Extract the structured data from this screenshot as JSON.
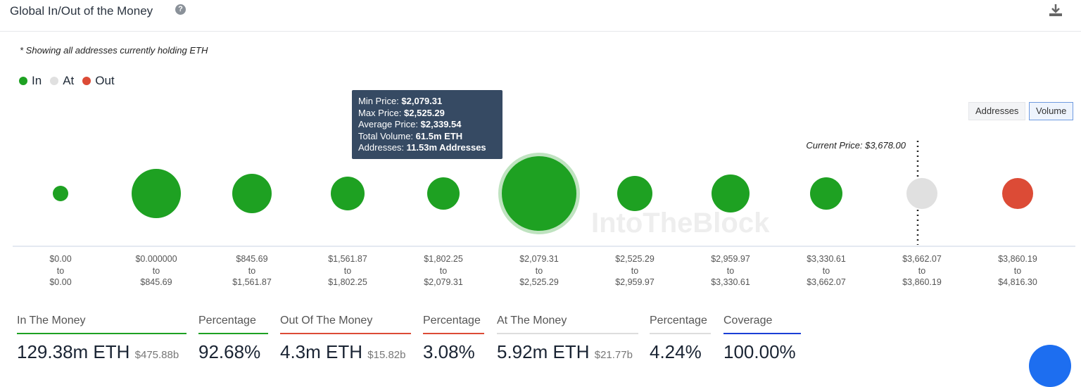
{
  "header": {
    "title": "Global In/Out of the Money"
  },
  "note": "* Showing all addresses currently holding ETH",
  "legend": [
    {
      "label": "In",
      "color": "#1ea122"
    },
    {
      "label": "At",
      "color": "#e0e0e0"
    },
    {
      "label": "Out",
      "color": "#dc4b36"
    }
  ],
  "toggles": {
    "addresses": "Addresses",
    "volume": "Volume",
    "active": "Volume"
  },
  "watermark": "IntoTheBlock",
  "chart_data": {
    "type": "bubble",
    "metric": "Volume",
    "current_price_label": "Current Price: $3,678.00",
    "current_price": 3678.0,
    "buckets": [
      {
        "from": "$0.00",
        "to": "$0.00",
        "status": "in"
      },
      {
        "from": "$0.000000",
        "to": "$845.69",
        "status": "in"
      },
      {
        "from": "$845.69",
        "to": "$1,561.87",
        "status": "in"
      },
      {
        "from": "$1,561.87",
        "to": "$1,802.25",
        "status": "in"
      },
      {
        "from": "$1,802.25",
        "to": "$2,079.31",
        "status": "in"
      },
      {
        "from": "$2,079.31",
        "to": "$2,525.29",
        "status": "in",
        "volume_m_eth": 61.5,
        "selected": true
      },
      {
        "from": "$2,525.29",
        "to": "$2,959.97",
        "status": "in"
      },
      {
        "from": "$2,959.97",
        "to": "$3,330.61",
        "status": "in"
      },
      {
        "from": "$3,330.61",
        "to": "$3,662.07",
        "status": "in"
      },
      {
        "from": "$3,662.07",
        "to": "$3,860.19",
        "status": "at"
      },
      {
        "from": "$3,860.19",
        "to": "$4,816.30",
        "status": "out"
      }
    ],
    "to_word": "to",
    "tooltip": {
      "min_label": "Min Price:",
      "min": "$2,079.31",
      "max_label": "Max Price:",
      "max": "$2,525.29",
      "avg_label": "Average Price:",
      "avg": "$2,339.54",
      "vol_label": "Total Volume:",
      "vol": "61.5m ETH",
      "addr_label": "Addresses:",
      "addr": "11.53m Addresses"
    }
  },
  "stats": [
    {
      "label": "In The Money",
      "value": "129.38m ETH",
      "sub": "$475.88b",
      "color": "#1ea122"
    },
    {
      "label": "Percentage",
      "value": "92.68%",
      "color": "#1ea122"
    },
    {
      "label": "Out Of The Money",
      "value": "4.3m ETH",
      "sub": "$15.82b",
      "color": "#dc4b36"
    },
    {
      "label": "Percentage",
      "value": "3.08%",
      "color": "#dc4b36"
    },
    {
      "label": "At The Money",
      "value": "5.92m ETH",
      "sub": "$21.77b",
      "color": "#dddddd"
    },
    {
      "label": "Percentage",
      "value": "4.24%",
      "color": "#dddddd"
    },
    {
      "label": "Coverage",
      "value": "100.00%",
      "color": "#1a3fd6"
    }
  ]
}
